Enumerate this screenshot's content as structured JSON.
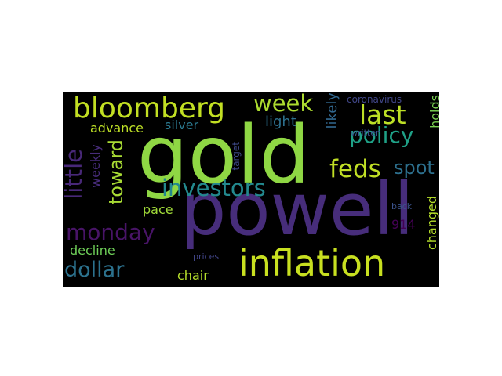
{
  "word_cloud": {
    "background": "#000000",
    "words": [
      {
        "key": "gold",
        "text": "gold",
        "color": "#8fd744",
        "orientation": "horizontal"
      },
      {
        "key": "powell",
        "text": "powell",
        "color": "#472d7b",
        "orientation": "horizontal"
      },
      {
        "key": "inflation",
        "text": "inflation",
        "color": "#c8e020",
        "orientation": "horizontal"
      },
      {
        "key": "bloomberg",
        "text": "bloomberg",
        "color": "#c2df23",
        "orientation": "horizontal"
      },
      {
        "key": "investors",
        "text": "investors",
        "color": "#23898e",
        "orientation": "horizontal"
      },
      {
        "key": "last",
        "text": "last",
        "color": "#bddf26",
        "orientation": "horizontal"
      },
      {
        "key": "monday",
        "text": "monday",
        "color": "#481467",
        "orientation": "horizontal"
      },
      {
        "key": "week",
        "text": "week",
        "color": "#addc30",
        "orientation": "horizontal"
      },
      {
        "key": "policy",
        "text": "policy",
        "color": "#1fa187",
        "orientation": "horizontal"
      },
      {
        "key": "feds",
        "text": "feds",
        "color": "#c0df25",
        "orientation": "horizontal"
      },
      {
        "key": "dollar",
        "text": "dollar",
        "color": "#2c728e",
        "orientation": "horizontal"
      },
      {
        "key": "spot",
        "text": "spot",
        "color": "#2d708e",
        "orientation": "horizontal"
      },
      {
        "key": "little",
        "text": "little",
        "color": "#482878",
        "orientation": "vertical"
      },
      {
        "key": "toward",
        "text": "toward",
        "color": "#a8db34",
        "orientation": "vertical"
      },
      {
        "key": "weekly",
        "text": "weekly",
        "color": "#472c7a",
        "orientation": "vertical"
      },
      {
        "key": "light",
        "text": "light",
        "color": "#2d708e",
        "orientation": "horizontal"
      },
      {
        "key": "likely",
        "text": "likely",
        "color": "#31678e",
        "orientation": "vertical"
      },
      {
        "key": "holds",
        "text": "holds",
        "color": "#7ad151",
        "orientation": "vertical"
      },
      {
        "key": "advance",
        "text": "advance",
        "color": "#bddf26",
        "orientation": "horizontal"
      },
      {
        "key": "silver",
        "text": "silver",
        "color": "#2a788e",
        "orientation": "horizontal"
      },
      {
        "key": "pace",
        "text": "pace",
        "color": "#a0da39",
        "orientation": "horizontal"
      },
      {
        "key": "decline",
        "text": "decline",
        "color": "#6ece58",
        "orientation": "horizontal"
      },
      {
        "key": "chair",
        "text": "chair",
        "color": "#b5de2b",
        "orientation": "horizontal"
      },
      {
        "key": "changed",
        "text": "changed",
        "color": "#b5de2b",
        "orientation": "vertical"
      },
      {
        "key": "n914",
        "text": "914",
        "color": "#440154",
        "orientation": "horizontal"
      },
      {
        "key": "coronavirus",
        "text": "coronavirus",
        "color": "#404688",
        "orientation": "horizontal"
      },
      {
        "key": "written",
        "text": "written",
        "color": "#39558c",
        "orientation": "horizontal"
      },
      {
        "key": "target",
        "text": "target",
        "color": "#3e4a89",
        "orientation": "vertical"
      },
      {
        "key": "back",
        "text": "back",
        "color": "#3b528b",
        "orientation": "horizontal"
      },
      {
        "key": "prices",
        "text": "prices",
        "color": "#414487",
        "orientation": "horizontal"
      }
    ]
  }
}
